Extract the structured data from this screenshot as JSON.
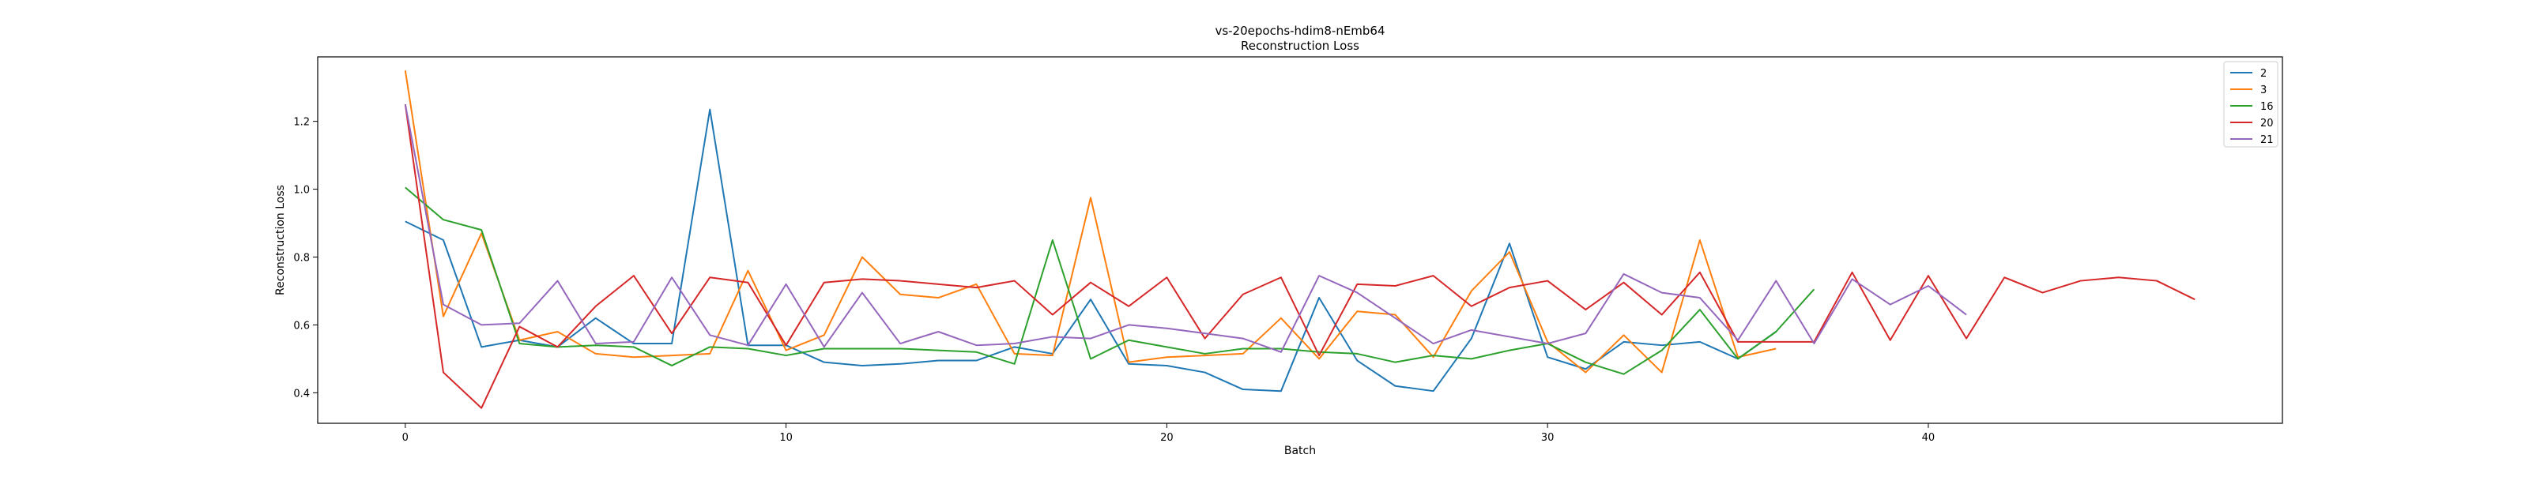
{
  "chart_data": {
    "type": "line",
    "title": "vs-20epochs-hdim8-nEmb64",
    "subtitle": "Reconstruction Loss",
    "xlabel": "Batch",
    "ylabel": "Reconstruction Loss",
    "xlim": [
      -2.3,
      49.3
    ],
    "ylim": [
      0.31,
      1.39
    ],
    "xticks": [
      0,
      10,
      20,
      30,
      40
    ],
    "yticks": [
      0.4,
      0.6,
      0.8,
      1.0,
      1.2
    ],
    "ytick_labels": [
      "0.4",
      "0.6",
      "0.8",
      "1.0",
      "1.2"
    ],
    "grid": false,
    "legend_position": "top-right",
    "series": [
      {
        "name": "2",
        "color": "#1f77b4",
        "values": [
          0.905,
          0.85,
          0.535,
          0.555,
          0.535,
          0.62,
          0.545,
          0.545,
          1.235,
          0.54,
          0.54,
          0.49,
          0.48,
          0.485,
          0.495,
          0.495,
          0.535,
          0.515,
          0.675,
          0.485,
          0.48,
          0.46,
          0.41,
          0.405,
          0.68,
          0.495,
          0.42,
          0.405,
          0.56,
          0.84,
          0.505,
          0.47,
          0.55,
          0.54,
          0.55,
          0.5,
          0.58
        ]
      },
      {
        "name": "3",
        "color": "#ff7f0e",
        "values": [
          1.35,
          0.625,
          0.87,
          0.555,
          0.58,
          0.515,
          0.505,
          0.51,
          0.515,
          0.76,
          0.525,
          0.57,
          0.8,
          0.69,
          0.68,
          0.72,
          0.515,
          0.51,
          0.975,
          0.49,
          0.505,
          0.51,
          0.515,
          0.62,
          0.5,
          0.64,
          0.63,
          0.505,
          0.7,
          0.815,
          0.55,
          0.46,
          0.57,
          0.46,
          0.85,
          0.505,
          0.53
        ]
      },
      {
        "name": "16",
        "color": "#2ca02c",
        "values": [
          1.005,
          0.91,
          0.88,
          0.545,
          0.535,
          0.54,
          0.535,
          0.48,
          0.535,
          0.53,
          0.51,
          0.53,
          0.53,
          0.53,
          0.525,
          0.52,
          0.485,
          0.85,
          0.5,
          0.555,
          0.535,
          0.515,
          0.53,
          0.53,
          0.52,
          0.515,
          0.49,
          0.51,
          0.5,
          0.525,
          0.545,
          0.49,
          0.455,
          0.525,
          0.645,
          0.5,
          0.58,
          0.705
        ]
      },
      {
        "name": "20",
        "color": "#d62728",
        "values": [
          1.25,
          0.46,
          0.355,
          0.595,
          0.535,
          0.655,
          0.745,
          0.575,
          0.74,
          0.725,
          0.54,
          0.725,
          0.735,
          0.73,
          0.72,
          0.71,
          0.73,
          0.63,
          0.725,
          0.655,
          0.74,
          0.56,
          0.69,
          0.74,
          0.51,
          0.72,
          0.715,
          0.745,
          0.655,
          0.71,
          0.73,
          0.645,
          0.725,
          0.63,
          0.755,
          0.55,
          0.55,
          0.55,
          0.755,
          0.555,
          0.745,
          0.56,
          0.74,
          0.695,
          0.73,
          0.74,
          0.73,
          0.675
        ]
      },
      {
        "name": "21",
        "color": "#9467bd",
        "values": [
          1.25,
          0.66,
          0.6,
          0.605,
          0.73,
          0.545,
          0.55,
          0.74,
          0.57,
          0.54,
          0.72,
          0.535,
          0.695,
          0.545,
          0.58,
          0.54,
          0.545,
          0.565,
          0.56,
          0.6,
          0.59,
          0.575,
          0.56,
          0.52,
          0.745,
          0.695,
          0.62,
          0.545,
          0.585,
          0.565,
          0.545,
          0.575,
          0.75,
          0.695,
          0.68,
          0.555,
          0.73,
          0.545,
          0.735,
          0.66,
          0.715,
          0.63
        ]
      }
    ]
  }
}
